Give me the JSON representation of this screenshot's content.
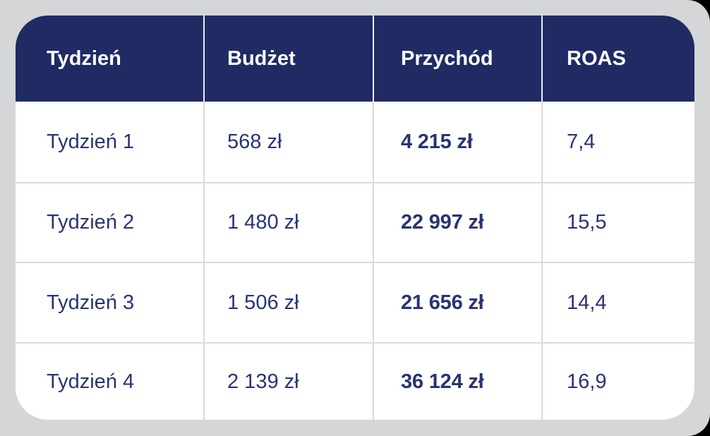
{
  "colors": {
    "canvas_background": "#000000",
    "panel_background": "#d5d6d8",
    "card_background": "#ffffff",
    "header_background": "#202b64",
    "header_text": "#fdfdfd",
    "cell_text": "#283471",
    "divider": "#dadada"
  },
  "table": {
    "headers": [
      "Tydzień",
      "Budżet",
      "Przychód",
      "ROAS"
    ],
    "rows": [
      {
        "week": "Tydzień 1",
        "budget": "568 zł",
        "revenue": "4 215 zł",
        "roas": "7,4"
      },
      {
        "week": "Tydzień 2",
        "budget": "1 480 zł",
        "revenue": "22 997 zł",
        "roas": "15,5"
      },
      {
        "week": "Tydzień 3",
        "budget": "1 506 zł",
        "revenue": "21 656 zł",
        "roas": "14,4"
      },
      {
        "week": "Tydzień 4",
        "budget": "2 139 zł",
        "revenue": "36 124 zł",
        "roas": "16,9"
      }
    ]
  },
  "chart_data": {
    "type": "table",
    "columns": [
      "Tydzień",
      "Budżet",
      "Przychód",
      "ROAS"
    ],
    "rows": [
      [
        "Tydzień 1",
        "568 zł",
        "4 215 zł",
        "7,4"
      ],
      [
        "Tydzień 2",
        "1 480 zł",
        "22 997 zł",
        "15,5"
      ],
      [
        "Tydzień 3",
        "1 506 zł",
        "21 656 zł",
        "14,4"
      ],
      [
        "Tydzień 4",
        "2 139 zł",
        "36 124 zł",
        "16,9"
      ]
    ],
    "numeric": {
      "budget_pln": [
        568,
        1480,
        1506,
        2139
      ],
      "revenue_pln": [
        4215,
        22997,
        21656,
        36124
      ],
      "roas": [
        7.4,
        15.5,
        14.4,
        16.9
      ]
    },
    "currency": "zł"
  }
}
